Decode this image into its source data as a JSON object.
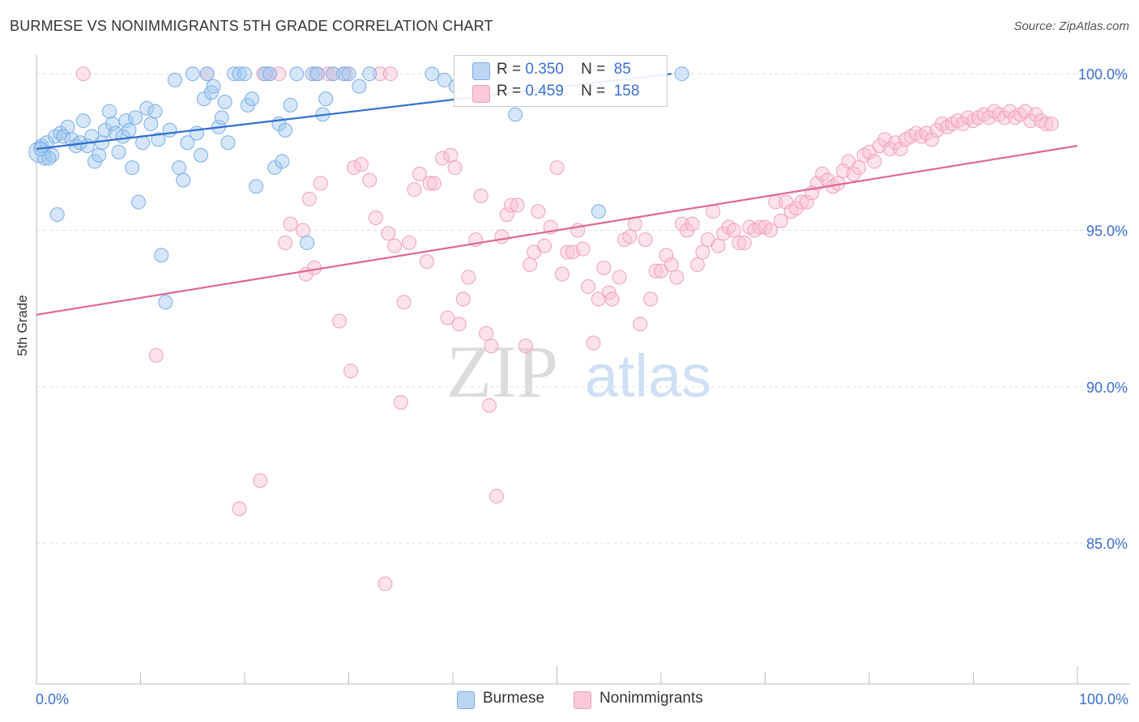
{
  "title": "BURMESE VS NONIMMIGRANTS 5TH GRADE CORRELATION CHART",
  "source": "Source: ZipAtlas.com",
  "watermark": {
    "zip": "ZIP",
    "atlas": "atlas"
  },
  "legend": {
    "rows": [
      {
        "r_label": "R =",
        "r_value": "0.350",
        "n_label": "N =",
        "n_value": "85"
      },
      {
        "r_label": "R =",
        "r_value": "0.459",
        "n_label": "N =",
        "n_value": "158"
      }
    ]
  },
  "bottom_legend": [
    "Burmese",
    "Nonimmigrants"
  ],
  "colors": {
    "blue": "#7aaee8",
    "blue_line": "#2f6fd0",
    "pink": "#f0a0bc",
    "pink_line": "#e0698f",
    "axis_text": "#3b6fd4"
  },
  "chart_data": {
    "type": "scatter",
    "title": "BURMESE VS NONIMMIGRANTS 5TH GRADE CORRELATION CHART",
    "xlabel": "",
    "ylabel": "5th Grade",
    "xlim": [
      0,
      100
    ],
    "ylim": [
      80.5,
      100.6
    ],
    "x_tick_labels": [
      "0.0%",
      "100.0%"
    ],
    "y_ticks": [
      85,
      90,
      95,
      100
    ],
    "y_tick_labels": [
      "85.0%",
      "90.0%",
      "95.0%",
      "100.0%"
    ],
    "grid": true,
    "series": [
      {
        "name": "Burmese",
        "trend": {
          "x": [
            0,
            61
          ],
          "y": [
            97.6,
            100.0
          ]
        },
        "points": [
          [
            0.3,
            97.5
          ],
          [
            0.5,
            97.7
          ],
          [
            0.8,
            97.3
          ],
          [
            1.0,
            97.8
          ],
          [
            1.5,
            97.4
          ],
          [
            1.8,
            98.0
          ],
          [
            2.3,
            98.1
          ],
          [
            2.6,
            98.0
          ],
          [
            3.0,
            98.3
          ],
          [
            3.4,
            97.9
          ],
          [
            3.8,
            97.7
          ],
          [
            4.2,
            97.8
          ],
          [
            4.5,
            98.5
          ],
          [
            4.9,
            97.7
          ],
          [
            5.3,
            98.0
          ],
          [
            5.6,
            97.2
          ],
          [
            6.0,
            97.4
          ],
          [
            6.3,
            97.8
          ],
          [
            6.6,
            98.2
          ],
          [
            7.0,
            98.8
          ],
          [
            7.3,
            98.4
          ],
          [
            7.6,
            98.1
          ],
          [
            7.9,
            97.5
          ],
          [
            8.3,
            98.0
          ],
          [
            8.6,
            98.5
          ],
          [
            8.9,
            98.2
          ],
          [
            9.2,
            97.0
          ],
          [
            9.5,
            98.6
          ],
          [
            9.8,
            95.9
          ],
          [
            10.2,
            97.8
          ],
          [
            10.6,
            98.9
          ],
          [
            11.0,
            98.4
          ],
          [
            11.4,
            98.8
          ],
          [
            11.7,
            97.9
          ],
          [
            12.0,
            94.2
          ],
          [
            12.4,
            92.7
          ],
          [
            12.8,
            98.2
          ],
          [
            13.3,
            99.8
          ],
          [
            13.7,
            97.0
          ],
          [
            14.1,
            96.6
          ],
          [
            14.5,
            97.8
          ],
          [
            15.0,
            100.0
          ],
          [
            15.4,
            98.1
          ],
          [
            15.8,
            97.4
          ],
          [
            16.1,
            99.2
          ],
          [
            16.4,
            100.0
          ],
          [
            16.8,
            99.4
          ],
          [
            17.0,
            99.6
          ],
          [
            17.5,
            98.3
          ],
          [
            17.8,
            98.6
          ],
          [
            18.1,
            99.1
          ],
          [
            18.4,
            97.8
          ],
          [
            19.0,
            100.0
          ],
          [
            19.5,
            100.0
          ],
          [
            20.0,
            100.0
          ],
          [
            20.3,
            99.0
          ],
          [
            20.7,
            99.2
          ],
          [
            21.1,
            96.4
          ],
          [
            22.0,
            100.0
          ],
          [
            22.4,
            100.0
          ],
          [
            22.9,
            97.0
          ],
          [
            23.3,
            98.4
          ],
          [
            23.6,
            97.2
          ],
          [
            23.9,
            98.2
          ],
          [
            24.4,
            99.0
          ],
          [
            25.0,
            100.0
          ],
          [
            26.0,
            94.6
          ],
          [
            26.5,
            100.0
          ],
          [
            27.0,
            100.0
          ],
          [
            27.5,
            98.7
          ],
          [
            27.8,
            99.2
          ],
          [
            28.5,
            100.0
          ],
          [
            29.5,
            100.0
          ],
          [
            30.0,
            100.0
          ],
          [
            31.0,
            99.6
          ],
          [
            32.0,
            100.0
          ],
          [
            38.0,
            100.0
          ],
          [
            39.2,
            99.8
          ],
          [
            40.3,
            99.6
          ],
          [
            46.0,
            98.7
          ],
          [
            54.0,
            95.6
          ],
          [
            62.0,
            100.0
          ],
          [
            0.4,
            97.6
          ],
          [
            1.2,
            97.3
          ],
          [
            2.0,
            95.5
          ]
        ]
      },
      {
        "name": "Nonimmigrants",
        "trend": {
          "x": [
            0,
            100
          ],
          "y": [
            92.3,
            97.7
          ]
        },
        "points": [
          [
            4.5,
            100.0
          ],
          [
            11.5,
            91.0
          ],
          [
            16.4,
            100.0
          ],
          [
            19.5,
            86.1
          ],
          [
            21.5,
            87.0
          ],
          [
            21.8,
            100.0
          ],
          [
            22.4,
            100.0
          ],
          [
            23.3,
            100.0
          ],
          [
            23.9,
            94.6
          ],
          [
            24.4,
            95.2
          ],
          [
            25.6,
            95.0
          ],
          [
            25.9,
            93.6
          ],
          [
            26.2,
            96.0
          ],
          [
            26.7,
            93.8
          ],
          [
            27.3,
            96.5
          ],
          [
            28.0,
            100.0
          ],
          [
            28.5,
            100.0
          ],
          [
            29.1,
            92.1
          ],
          [
            30.2,
            90.5
          ],
          [
            30.5,
            97.0
          ],
          [
            31.2,
            97.1
          ],
          [
            32.0,
            96.6
          ],
          [
            32.6,
            95.4
          ],
          [
            33.0,
            100.0
          ],
          [
            33.5,
            83.7
          ],
          [
            33.8,
            94.9
          ],
          [
            34.4,
            94.5
          ],
          [
            35.0,
            89.5
          ],
          [
            35.3,
            92.7
          ],
          [
            35.8,
            94.6
          ],
          [
            36.3,
            96.3
          ],
          [
            36.8,
            96.8
          ],
          [
            37.5,
            94.0
          ],
          [
            37.8,
            96.5
          ],
          [
            38.2,
            96.5
          ],
          [
            39.0,
            97.3
          ],
          [
            39.5,
            92.2
          ],
          [
            39.8,
            97.4
          ],
          [
            40.2,
            97.0
          ],
          [
            40.6,
            92.0
          ],
          [
            41.0,
            92.8
          ],
          [
            41.5,
            93.5
          ],
          [
            42.2,
            94.7
          ],
          [
            42.7,
            96.1
          ],
          [
            43.2,
            91.7
          ],
          [
            43.5,
            89.4
          ],
          [
            43.7,
            91.3
          ],
          [
            44.2,
            86.5
          ],
          [
            44.7,
            94.8
          ],
          [
            45.2,
            95.5
          ],
          [
            45.6,
            95.8
          ],
          [
            46.2,
            95.8
          ],
          [
            47.0,
            91.3
          ],
          [
            47.4,
            93.9
          ],
          [
            47.8,
            94.3
          ],
          [
            48.2,
            95.6
          ],
          [
            48.8,
            94.5
          ],
          [
            49.4,
            95.1
          ],
          [
            50.0,
            97.0
          ],
          [
            50.5,
            93.6
          ],
          [
            51.0,
            94.3
          ],
          [
            51.5,
            94.3
          ],
          [
            52.0,
            95.0
          ],
          [
            52.5,
            94.4
          ],
          [
            53.0,
            93.2
          ],
          [
            53.5,
            91.4
          ],
          [
            54.0,
            92.8
          ],
          [
            54.5,
            93.8
          ],
          [
            55.0,
            93.0
          ],
          [
            55.3,
            92.8
          ],
          [
            56.0,
            93.5
          ],
          [
            56.5,
            94.7
          ],
          [
            57.0,
            94.8
          ],
          [
            57.5,
            95.2
          ],
          [
            58.0,
            92.0
          ],
          [
            58.5,
            94.7
          ],
          [
            59.0,
            92.8
          ],
          [
            59.5,
            93.7
          ],
          [
            60.0,
            93.7
          ],
          [
            60.5,
            94.2
          ],
          [
            61.0,
            93.9
          ],
          [
            61.5,
            93.5
          ],
          [
            62.0,
            95.2
          ],
          [
            62.5,
            95.0
          ],
          [
            63.0,
            95.2
          ],
          [
            63.5,
            93.9
          ],
          [
            64.0,
            94.3
          ],
          [
            64.5,
            94.7
          ],
          [
            65.0,
            95.6
          ],
          [
            65.5,
            94.5
          ],
          [
            66.0,
            94.9
          ],
          [
            66.5,
            95.1
          ],
          [
            67.0,
            95.0
          ],
          [
            67.5,
            94.6
          ],
          [
            68.0,
            94.6
          ],
          [
            68.5,
            95.1
          ],
          [
            69.0,
            95.0
          ],
          [
            69.5,
            95.1
          ],
          [
            70.0,
            95.1
          ],
          [
            70.5,
            95.0
          ],
          [
            71.0,
            95.9
          ],
          [
            71.5,
            95.3
          ],
          [
            72.0,
            95.9
          ],
          [
            72.5,
            95.6
          ],
          [
            73.0,
            95.7
          ],
          [
            73.5,
            95.9
          ],
          [
            74.0,
            95.9
          ],
          [
            74.5,
            96.2
          ],
          [
            75.0,
            96.5
          ],
          [
            75.5,
            96.8
          ],
          [
            76.0,
            96.6
          ],
          [
            76.5,
            96.4
          ],
          [
            77.0,
            96.5
          ],
          [
            77.5,
            96.9
          ],
          [
            78.0,
            97.2
          ],
          [
            78.5,
            96.8
          ],
          [
            79.0,
            97.0
          ],
          [
            79.5,
            97.4
          ],
          [
            80.0,
            97.5
          ],
          [
            80.5,
            97.2
          ],
          [
            81.0,
            97.7
          ],
          [
            81.5,
            97.9
          ],
          [
            82.0,
            97.6
          ],
          [
            82.5,
            97.8
          ],
          [
            83.0,
            97.6
          ],
          [
            83.5,
            97.9
          ],
          [
            84.0,
            98.0
          ],
          [
            84.5,
            98.1
          ],
          [
            85.0,
            98.0
          ],
          [
            85.5,
            98.1
          ],
          [
            86.0,
            97.9
          ],
          [
            86.5,
            98.2
          ],
          [
            87.0,
            98.4
          ],
          [
            87.5,
            98.3
          ],
          [
            88.0,
            98.4
          ],
          [
            88.5,
            98.5
          ],
          [
            89.0,
            98.4
          ],
          [
            89.5,
            98.6
          ],
          [
            90.0,
            98.5
          ],
          [
            90.5,
            98.6
          ],
          [
            91.0,
            98.7
          ],
          [
            91.5,
            98.6
          ],
          [
            92.0,
            98.8
          ],
          [
            92.5,
            98.7
          ],
          [
            93.0,
            98.6
          ],
          [
            93.5,
            98.8
          ],
          [
            94.0,
            98.6
          ],
          [
            94.5,
            98.7
          ],
          [
            95.0,
            98.8
          ],
          [
            95.5,
            98.5
          ],
          [
            96.0,
            98.7
          ],
          [
            96.5,
            98.5
          ],
          [
            97.0,
            98.4
          ],
          [
            97.5,
            98.4
          ],
          [
            41.3,
            100.0
          ],
          [
            34.0,
            100.0
          ],
          [
            26.8,
            100.0
          ],
          [
            29.7,
            100.0
          ]
        ]
      }
    ]
  }
}
